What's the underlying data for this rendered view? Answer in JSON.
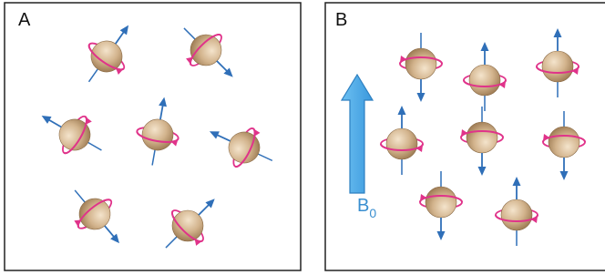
{
  "panels": [
    {
      "label": "A"
    },
    {
      "label": "B",
      "field_label": "B",
      "field_subscript": "0"
    }
  ]
}
